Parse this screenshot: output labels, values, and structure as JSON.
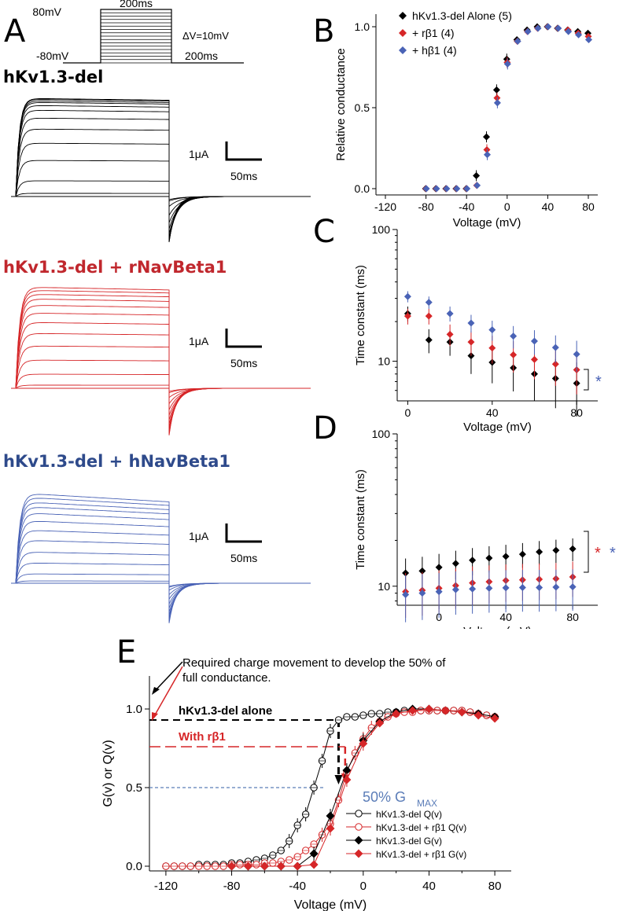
{
  "panels": {
    "a": "A",
    "b": "B",
    "c": "C",
    "d": "D",
    "e": "E"
  },
  "colors": {
    "black": "#000000",
    "red": "#d62628",
    "blue": "#4a63b6",
    "red_title": "#c0272d",
    "blue_title": "#2e4a8b",
    "guide_blue": "#5b7db8"
  },
  "protocol": {
    "v_high": "80mV",
    "v_low": "-80mV",
    "t_step": "200ms",
    "t_tail": "200ms",
    "dv": "ΔV=10mV"
  },
  "traces": [
    {
      "title": "hKv1.3-del",
      "color": "black"
    },
    {
      "title": "hKv1.3-del + rNavBeta1",
      "color": "red"
    },
    {
      "title": "hKv1.3-del + hNavBeta1",
      "color": "blue"
    }
  ],
  "scalebar": {
    "current": "1μA",
    "time": "50ms"
  },
  "stars": {
    "c_blue": "*",
    "d_red": "*",
    "d_blue": "*"
  },
  "chart_data": [
    {
      "id": "B",
      "type": "scatter",
      "xlabel": "Voltage (mV)",
      "ylabel": "Relative conductance",
      "xlim": [
        -120,
        80
      ],
      "ylim": [
        0,
        1
      ],
      "xticks": [
        "-120",
        "-80",
        "-40",
        "0",
        "40",
        "80"
      ],
      "yticks": [
        "0.0",
        "0.5",
        "1.0"
      ],
      "legend": "top-left",
      "x": [
        -80,
        -70,
        -60,
        -50,
        -40,
        -30,
        -20,
        -10,
        0,
        10,
        20,
        30,
        40,
        50,
        60,
        70,
        80
      ],
      "series": [
        {
          "name": "hKv1.3-del Alone (5)",
          "color": "black",
          "values": [
            0,
            0,
            0,
            0,
            0,
            0.08,
            0.32,
            0.61,
            0.8,
            0.92,
            0.98,
            1.0,
            1.0,
            0.99,
            0.98,
            0.97,
            0.96
          ]
        },
        {
          "name": "+ rβ1 (4)",
          "color": "red",
          "values": [
            0,
            0,
            0,
            0,
            0,
            0.02,
            0.24,
            0.56,
            0.78,
            0.91,
            0.97,
            0.99,
            1.0,
            0.99,
            0.98,
            0.96,
            0.94
          ]
        },
        {
          "name": "+ hβ1 (4)",
          "color": "blue",
          "values": [
            0,
            0,
            0,
            0,
            0,
            0.02,
            0.21,
            0.53,
            0.77,
            0.91,
            0.97,
            0.99,
            1.0,
            0.99,
            0.97,
            0.95,
            0.92
          ]
        }
      ]
    },
    {
      "id": "C",
      "type": "scatter",
      "xlabel": "Voltage (mV)",
      "ylabel": "Time constant (ms)",
      "xlim": [
        -5,
        90
      ],
      "ylim": [
        5,
        100
      ],
      "yscale": "log",
      "xticks": [
        "0",
        "40",
        "80"
      ],
      "yticks": [
        "10",
        "100"
      ],
      "x": [
        0,
        10,
        20,
        30,
        40,
        50,
        60,
        70,
        80
      ],
      "series": [
        {
          "color": "black",
          "values": [
            23,
            14.5,
            14,
            11,
            9.8,
            8.9,
            8,
            7.4,
            6.8
          ]
        },
        {
          "color": "red",
          "values": [
            22,
            22,
            16,
            14,
            12.6,
            11.2,
            10.3,
            9.5,
            8.6
          ]
        },
        {
          "color": "blue",
          "values": [
            31,
            28,
            23,
            19.5,
            17.3,
            15.5,
            14.2,
            12.7,
            11.3
          ]
        }
      ]
    },
    {
      "id": "D",
      "type": "scatter",
      "xlabel": "Voltage (mV)",
      "ylabel": "Time constant (ms)",
      "xlim": [
        -25,
        95
      ],
      "ylim": [
        7.5,
        100
      ],
      "yscale": "log",
      "xticks": [
        "0",
        "40",
        "80"
      ],
      "yticks": [
        "10",
        "100"
      ],
      "x": [
        -20,
        -10,
        0,
        10,
        20,
        30,
        40,
        50,
        60,
        70,
        80
      ],
      "series": [
        {
          "color": "black",
          "values": [
            12.2,
            12.6,
            13.3,
            14.1,
            14.8,
            15.3,
            15.7,
            16.2,
            16.8,
            17.2,
            17.6
          ]
        },
        {
          "color": "red",
          "values": [
            9.2,
            9.4,
            9.7,
            10.1,
            10.5,
            10.7,
            10.9,
            11.0,
            11.1,
            11.2,
            11.5
          ]
        },
        {
          "color": "blue",
          "values": [
            8.8,
            9.0,
            9.2,
            9.5,
            9.6,
            9.7,
            9.75,
            9.8,
            9.8,
            9.85,
            9.9
          ]
        }
      ]
    },
    {
      "id": "E",
      "type": "line",
      "xlabel": "Voltage (mV)",
      "ylabel": "G(v) or Q(v)",
      "xlim": [
        -130,
        90
      ],
      "ylim": [
        0,
        1.05
      ],
      "xticks": [
        "-120",
        "-80",
        "-40",
        "0",
        "40",
        "80"
      ],
      "yticks": [
        "0.0",
        "0.5",
        "1.0"
      ],
      "legend": "bottom-right",
      "series": [
        {
          "name": "hKv1.3-del Q(v)",
          "color": "black",
          "marker": "open-circle",
          "x": [
            -120,
            -115,
            -110,
            -105,
            -100,
            -95,
            -90,
            -85,
            -80,
            -75,
            -70,
            -65,
            -60,
            -55,
            -50,
            -45,
            -40,
            -35,
            -30,
            -25,
            -20,
            -15,
            -10,
            -5,
            0,
            5,
            10,
            15,
            20,
            25,
            30,
            35,
            40,
            45,
            50,
            55,
            60,
            65,
            70,
            75,
            80
          ],
          "values": [
            0,
            0,
            0,
            0,
            0.01,
            0.01,
            0.01,
            0.01,
            0.02,
            0.02,
            0.03,
            0.04,
            0.05,
            0.07,
            0.1,
            0.16,
            0.26,
            0.33,
            0.5,
            0.67,
            0.86,
            0.93,
            0.95,
            0.95,
            0.96,
            0.97,
            0.97,
            0.98,
            0.98,
            0.99,
            0.99,
            0.99,
            0.99,
            0.99,
            0.99,
            0.99,
            0.99,
            0.98,
            0.97,
            0.96,
            0.95
          ]
        },
        {
          "name": "hKv1.3-del + rβ1 Q(v)",
          "color": "red",
          "marker": "open-circle",
          "x": [
            -120,
            -115,
            -110,
            -105,
            -100,
            -95,
            -90,
            -85,
            -80,
            -75,
            -70,
            -65,
            -60,
            -55,
            -50,
            -45,
            -40,
            -35,
            -30,
            -25,
            -20,
            -15,
            -10,
            -5,
            0,
            5,
            10,
            15,
            20,
            25,
            30,
            35,
            40,
            45,
            50,
            55,
            60,
            65,
            70,
            75,
            80
          ],
          "values": [
            0,
            0,
            0,
            0,
            0,
            0,
            0,
            0,
            0.01,
            0.01,
            0.01,
            0.01,
            0.02,
            0.02,
            0.03,
            0.04,
            0.06,
            0.1,
            0.14,
            0.2,
            0.27,
            0.42,
            0.6,
            0.72,
            0.81,
            0.88,
            0.92,
            0.95,
            0.97,
            0.98,
            0.98,
            0.99,
            0.99,
            0.99,
            0.99,
            0.99,
            0.99,
            0.98,
            0.97,
            0.96,
            0.95
          ]
        },
        {
          "name": "hKv1.3-del G(v)",
          "color": "black",
          "marker": "filled-diamond",
          "x": [
            -80,
            -70,
            -60,
            -50,
            -40,
            -30,
            -20,
            -10,
            0,
            10,
            20,
            30,
            40,
            50,
            60,
            70,
            80
          ],
          "values": [
            0,
            0,
            0,
            0,
            0,
            0.08,
            0.32,
            0.61,
            0.8,
            0.92,
            0.98,
            1.0,
            1.0,
            0.99,
            0.98,
            0.97,
            0.95
          ]
        },
        {
          "name": "hKv1.3-del + rβ1 G(v)",
          "color": "red",
          "marker": "filled-diamond",
          "x": [
            -80,
            -70,
            -60,
            -50,
            -40,
            -30,
            -20,
            -10,
            0,
            10,
            20,
            30,
            40,
            50,
            60,
            70,
            80
          ],
          "values": [
            0,
            0,
            0,
            0,
            0,
            0.01,
            0.24,
            0.55,
            0.78,
            0.91,
            0.97,
            0.99,
            1.0,
            0.99,
            0.98,
            0.96,
            0.94
          ]
        }
      ],
      "annotations": {
        "charge": "Required charge movement to develop the 50% of",
        "charge2": "full conductance.",
        "alone": "hKv1.3-del alone",
        "with_beta": "With rβ1",
        "half": "50%  G",
        "half_sub": "MAX"
      }
    }
  ]
}
